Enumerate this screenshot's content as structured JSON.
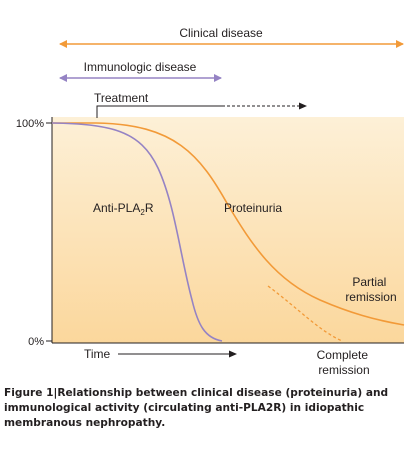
{
  "diagram": {
    "arrows": {
      "clinical_disease": "Clinical disease",
      "immunologic_disease": "Immunologic disease",
      "treatment": "Treatment",
      "time": "Time"
    },
    "axis": {
      "y_top_label": "100%",
      "y_bottom_label": "0%"
    },
    "curves": {
      "anti_pla2r": {
        "prefix": "Anti-PLA",
        "subscript": "2",
        "suffix": "R"
      },
      "proteinuria": "Proteinuria",
      "partial_remission": [
        "Partial",
        "remission"
      ],
      "complete_remission": [
        "Complete",
        "remission"
      ]
    },
    "colors": {
      "orange": "#f29a38",
      "purple": "#9583c4",
      "panel_top": "#fdf0d7",
      "panel_bottom": "#fbd79c",
      "text": "#231f20"
    }
  },
  "caption": {
    "figure_label": "Figure 1",
    "separator": "|",
    "text": "Relationship between clinical disease (proteinuria) and immunological activity (circulating anti-PLA2R) in idiopathic membranous nephropathy."
  }
}
